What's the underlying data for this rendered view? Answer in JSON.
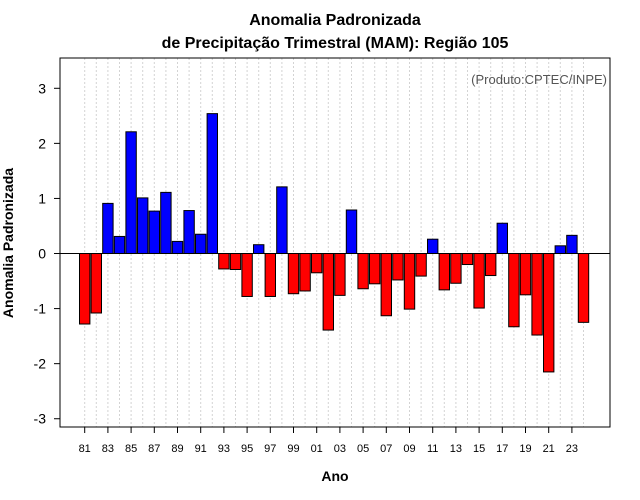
{
  "chart_data": {
    "type": "bar",
    "title_line1": "Anomalia Padronizada",
    "title_line2": "de Precipitação Trimestral (MAM): Região 105",
    "credit": "(Produto:CPTEC/INPE)",
    "xlabel": "Ano",
    "ylabel": "Anomalia Padronizada",
    "ylim": [
      -3.15,
      3.55
    ],
    "yticks": [
      -3,
      -2,
      -1,
      0,
      1,
      2,
      3
    ],
    "categories": [
      "81",
      "82",
      "83",
      "84",
      "85",
      "86",
      "87",
      "88",
      "89",
      "90",
      "91",
      "92",
      "93",
      "94",
      "95",
      "96",
      "97",
      "98",
      "99",
      "00",
      "01",
      "02",
      "03",
      "04",
      "05",
      "06",
      "07",
      "08",
      "09",
      "10",
      "11",
      "12",
      "13",
      "14",
      "15",
      "16",
      "17",
      "18",
      "19",
      "20",
      "21",
      "22",
      "23",
      "24"
    ],
    "xtick_labels": [
      "81",
      "83",
      "85",
      "87",
      "89",
      "91",
      "93",
      "95",
      "97",
      "99",
      "01",
      "03",
      "05",
      "07",
      "09",
      "11",
      "13",
      "15",
      "17",
      "19",
      "21",
      "23"
    ],
    "values": [
      -1.28,
      -1.08,
      0.91,
      0.31,
      2.21,
      1.01,
      0.77,
      1.11,
      0.22,
      0.78,
      0.35,
      2.54,
      -0.28,
      -0.29,
      -0.78,
      0.16,
      -0.78,
      1.21,
      -0.73,
      -0.68,
      -0.35,
      -1.39,
      -0.76,
      0.79,
      -0.64,
      -0.55,
      -1.13,
      -0.48,
      -1.01,
      -0.41,
      0.26,
      -0.66,
      -0.54,
      -0.2,
      -0.99,
      -0.4,
      0.55,
      -1.33,
      -0.75,
      -1.48,
      -2.15,
      0.14,
      0.33,
      -1.25
    ],
    "positive_color": "#0000ff",
    "negative_color": "#ff0000",
    "grid_color": "#d3d3d3"
  }
}
